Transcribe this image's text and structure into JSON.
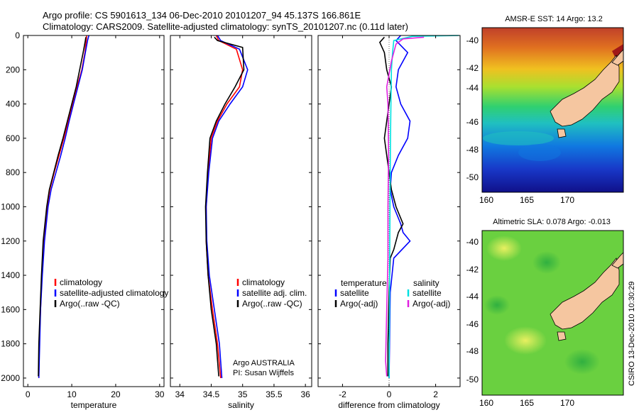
{
  "header": {
    "line1": "Argo profile: CS 5901613_134 06-Dec-2010 20101207_94 45.137S 166.861E",
    "line2": "Climatology: CARS2009. Satellite-adjusted climatology: synTS_20101207.nc (0.11d later)"
  },
  "side_label": "CSIRO 13-Dec-2010 10:30:29",
  "colors": {
    "climatology": "#ff0000",
    "satellite": "#0000ff",
    "argo": "#000000",
    "sal_sat": "#00e0e0",
    "sal_argo": "#e020e0",
    "land": "#f5c6a0"
  },
  "chart_data": [
    {
      "type": "line",
      "xlabel": "temperature",
      "ylabel": "",
      "xlim": [
        -1,
        31
      ],
      "ylim": [
        2050,
        0
      ],
      "xticks": [
        "0",
        "10",
        "20",
        "30"
      ],
      "yticks": [
        "0",
        "200",
        "400",
        "600",
        "800",
        "1000",
        "1200",
        "1400",
        "1600",
        "1800",
        "2000"
      ],
      "legend": [
        "climatology",
        "satellite-adjusted climatology",
        "Argo(..raw -QC)"
      ],
      "series": [
        {
          "name": "climatology",
          "x": [
            13.4,
            13.3,
            13.0,
            12.3,
            11.2,
            10.2,
            9.2,
            8.2,
            7.1,
            6.0,
            5.0,
            4.4,
            3.6,
            3.2,
            2.9,
            2.6,
            2.5
          ],
          "y": [
            0,
            30,
            100,
            200,
            300,
            400,
            500,
            600,
            700,
            800,
            900,
            1000,
            1200,
            1400,
            1600,
            1800,
            2000
          ]
        },
        {
          "name": "satellite-adjusted climatology",
          "x": [
            13.9,
            13.6,
            13.1,
            12.4,
            11.4,
            10.4,
            9.4,
            8.5,
            7.5,
            6.4,
            5.3,
            4.6,
            3.8,
            3.3,
            2.9,
            2.7,
            2.5
          ],
          "y": [
            0,
            30,
            100,
            200,
            300,
            400,
            500,
            600,
            700,
            800,
            900,
            1000,
            1200,
            1400,
            1600,
            1800,
            2000
          ]
        },
        {
          "name": "Argo(..raw -QC)",
          "x": [
            13.2,
            13.1,
            12.6,
            11.8,
            11.0,
            10.0,
            9.0,
            8.0,
            6.9,
            5.9,
            4.9,
            4.3,
            3.5,
            3.1,
            2.8,
            2.5,
            2.4
          ],
          "y": [
            10,
            30,
            100,
            200,
            300,
            400,
            500,
            600,
            700,
            800,
            900,
            1000,
            1200,
            1400,
            1600,
            1800,
            1990
          ]
        }
      ]
    },
    {
      "type": "line",
      "xlabel": "salinity",
      "ylabel": "",
      "xlim": [
        33.85,
        36.1
      ],
      "ylim": [
        2050,
        0
      ],
      "xticks": [
        "34",
        "34.5",
        "35",
        "35.5",
        "36"
      ],
      "yticks": [],
      "legend": [
        "climatology",
        "satellite adj. clim.",
        "Argo(..raw -QC)"
      ],
      "annotations": [
        "Argo AUSTRALIA",
        "PI: Susan Wijffels"
      ],
      "series": [
        {
          "name": "climatology",
          "x": [
            34.58,
            34.62,
            34.9,
            35.0,
            34.95,
            34.75,
            34.6,
            34.5,
            34.45,
            34.42,
            34.42,
            34.45,
            34.52,
            34.6,
            34.65
          ],
          "y": [
            0,
            30,
            80,
            200,
            300,
            400,
            500,
            600,
            800,
            1000,
            1200,
            1400,
            1600,
            1800,
            2000
          ]
        },
        {
          "name": "satellite adj. clim.",
          "x": [
            34.6,
            34.65,
            34.95,
            35.08,
            35.0,
            34.8,
            34.62,
            34.52,
            34.46,
            34.42,
            34.43,
            34.47,
            34.55,
            34.63,
            34.67
          ],
          "y": [
            0,
            30,
            80,
            200,
            300,
            400,
            500,
            600,
            800,
            1000,
            1200,
            1400,
            1600,
            1800,
            2000
          ]
        },
        {
          "name": "Argo(..raw -QC)",
          "x": [
            34.55,
            34.6,
            35.0,
            35.02,
            34.88,
            34.72,
            34.58,
            34.48,
            34.44,
            34.41,
            34.42,
            34.45,
            34.5,
            34.58,
            34.62
          ],
          "y": [
            10,
            30,
            70,
            200,
            300,
            400,
            500,
            600,
            800,
            1000,
            1200,
            1400,
            1600,
            1800,
            1990
          ]
        }
      ]
    },
    {
      "type": "line",
      "xlabel": "difference from climatology",
      "ylabel": "",
      "xlim": [
        -3.05,
        3.05
      ],
      "ylim": [
        2050,
        0
      ],
      "xticks": [
        "-2",
        "0",
        "2"
      ],
      "yticks": [],
      "legend_titles": [
        "temperature",
        "salinity"
      ],
      "legend": [
        "satellite",
        "Argo(-adj)",
        "satellite",
        "Argo(-adj)"
      ],
      "series": [
        {
          "name": "satellite",
          "x": [
            0.5,
            0.3,
            0.8,
            0.4,
            0.3,
            0.5,
            0.9,
            0.8,
            0.4,
            0.1,
            0.05,
            0.2,
            0.5,
            0.6,
            0.9,
            0.2,
            0.05,
            0.02,
            0.0
          ],
          "y": [
            0,
            30,
            100,
            200,
            300,
            400,
            500,
            600,
            700,
            800,
            900,
            1000,
            1100,
            1150,
            1200,
            1300,
            1500,
            1800,
            2000
          ]
        },
        {
          "name": "Argo(-adj)",
          "x": [
            -0.2,
            -0.4,
            -0.2,
            -0.1,
            0.1,
            0.0,
            -0.1,
            -0.2,
            -0.1,
            0.0,
            0.1,
            0.3,
            0.6,
            0.4,
            0.2,
            0.05,
            0.0,
            -0.05,
            -0.05
          ],
          "y": [
            10,
            40,
            100,
            200,
            300,
            400,
            500,
            600,
            700,
            800,
            900,
            1000,
            1100,
            1150,
            1250,
            1300,
            1500,
            1800,
            1990
          ]
        },
        {
          "name": "satellite",
          "x": [
            3.0,
            1.0,
            0.2,
            0.15,
            0.1,
            0.08,
            0.06,
            0.05,
            0.04,
            0.03,
            0.02,
            0.02,
            0.01,
            0.0
          ],
          "y": [
            0,
            5,
            30,
            100,
            200,
            400,
            600,
            800,
            1000,
            1200,
            1400,
            1600,
            1800,
            2000
          ]
        },
        {
          "name": "Argo(-adj)",
          "x": [
            1.5,
            0.6,
            0.3,
            0.1,
            -0.1,
            -0.05,
            -0.02,
            -0.05,
            -0.05,
            -0.1,
            -0.15,
            -0.1
          ],
          "y": [
            10,
            20,
            50,
            150,
            300,
            400,
            700,
            1000,
            1300,
            1600,
            1900,
            1990
          ]
        }
      ]
    },
    {
      "type": "heatmap",
      "title": "AMSR-E SST: 14 Argo: 13.2",
      "xticks": [
        "160",
        "165",
        "170"
      ],
      "yticks": [
        "-40",
        "-42",
        "-44",
        "-46",
        "-48",
        "-50"
      ]
    },
    {
      "type": "heatmap",
      "title": "Altimetric SLA: 0.078 Argo: -0.013",
      "xticks": [
        "160",
        "165",
        "170"
      ],
      "yticks": [
        "-40",
        "-42",
        "-44",
        "-46",
        "-48",
        "-50"
      ]
    }
  ]
}
